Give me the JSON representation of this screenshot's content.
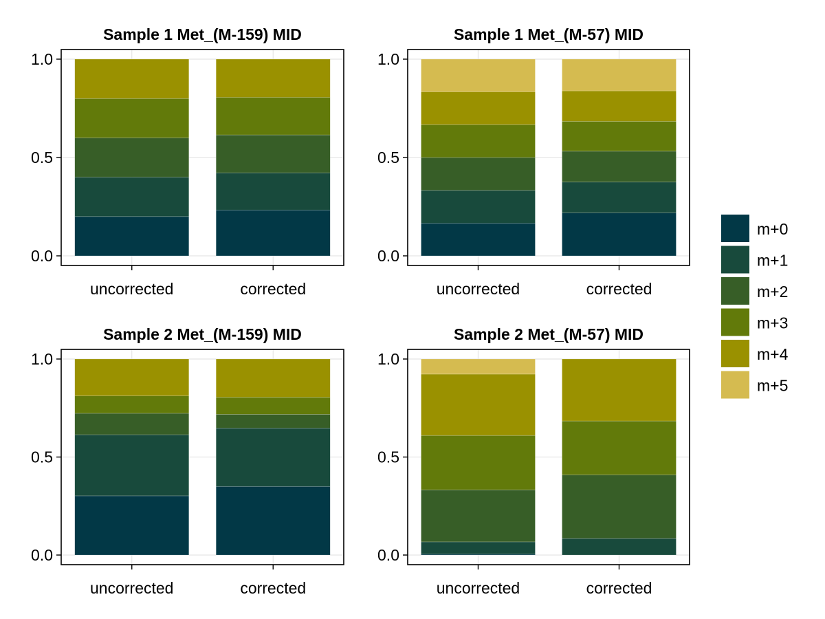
{
  "chart_data": {
    "type": "bar",
    "stacked": true,
    "grid": true,
    "legend_placement": "right",
    "legend": [
      {
        "name": "m+0",
        "color": "#023846"
      },
      {
        "name": "m+1",
        "color": "#184a3c"
      },
      {
        "name": "m+2",
        "color": "#375e27"
      },
      {
        "name": "m+3",
        "color": "#627a0a"
      },
      {
        "name": "m+4",
        "color": "#9a9100"
      },
      {
        "name": "m+5",
        "color": "#d5bb50"
      }
    ],
    "panels": [
      {
        "title": "Sample 1 Met_(M-159) MID",
        "categories": [
          "uncorrected",
          "corrected"
        ],
        "ylim": [
          0,
          1
        ],
        "yticks": [
          "0.0",
          "0.5",
          "1.0"
        ],
        "series": [
          {
            "name": "m+0",
            "values": [
              0.2,
              0.233
            ]
          },
          {
            "name": "m+1",
            "values": [
              0.2,
              0.189
            ]
          },
          {
            "name": "m+2",
            "values": [
              0.2,
              0.193
            ]
          },
          {
            "name": "m+3",
            "values": [
              0.2,
              0.191
            ]
          },
          {
            "name": "m+4",
            "values": [
              0.2,
              0.194
            ]
          }
        ]
      },
      {
        "title": "Sample 1 Met_(M-57) MID",
        "categories": [
          "uncorrected",
          "corrected"
        ],
        "ylim": [
          0,
          1
        ],
        "yticks": [
          "0.0",
          "0.5",
          "1.0"
        ],
        "series": [
          {
            "name": "m+0",
            "values": [
              0.166,
              0.218
            ]
          },
          {
            "name": "m+1",
            "values": [
              0.167,
              0.157
            ]
          },
          {
            "name": "m+2",
            "values": [
              0.167,
              0.157
            ]
          },
          {
            "name": "m+3",
            "values": [
              0.167,
              0.152
            ]
          },
          {
            "name": "m+4",
            "values": [
              0.167,
              0.155
            ]
          },
          {
            "name": "m+5",
            "values": [
              0.166,
              0.161
            ]
          }
        ]
      },
      {
        "title": "Sample 2 Met_(M-159) MID",
        "categories": [
          "uncorrected",
          "corrected"
        ],
        "ylim": [
          0,
          1
        ],
        "yticks": [
          "0.0",
          "0.5",
          "1.0"
        ],
        "series": [
          {
            "name": "m+0",
            "values": [
              0.302,
              0.35
            ]
          },
          {
            "name": "m+1",
            "values": [
              0.312,
              0.298
            ]
          },
          {
            "name": "m+2",
            "values": [
              0.109,
              0.07
            ]
          },
          {
            "name": "m+3",
            "values": [
              0.089,
              0.087
            ]
          },
          {
            "name": "m+4",
            "values": [
              0.188,
              0.195
            ]
          }
        ]
      },
      {
        "title": "Sample 2 Met_(M-57) MID",
        "categories": [
          "uncorrected",
          "corrected"
        ],
        "ylim": [
          0,
          1
        ],
        "yticks": [
          "0.0",
          "0.5",
          "1.0"
        ],
        "series": [
          {
            "name": "m+0",
            "values": [
              0.005,
              0.0
            ]
          },
          {
            "name": "m+1",
            "values": [
              0.062,
              0.085
            ]
          },
          {
            "name": "m+2",
            "values": [
              0.266,
              0.324
            ]
          },
          {
            "name": "m+3",
            "values": [
              0.277,
              0.275
            ]
          },
          {
            "name": "m+4",
            "values": [
              0.313,
              0.316
            ]
          },
          {
            "name": "m+5",
            "values": [
              0.077,
              0.0
            ]
          }
        ]
      }
    ]
  }
}
